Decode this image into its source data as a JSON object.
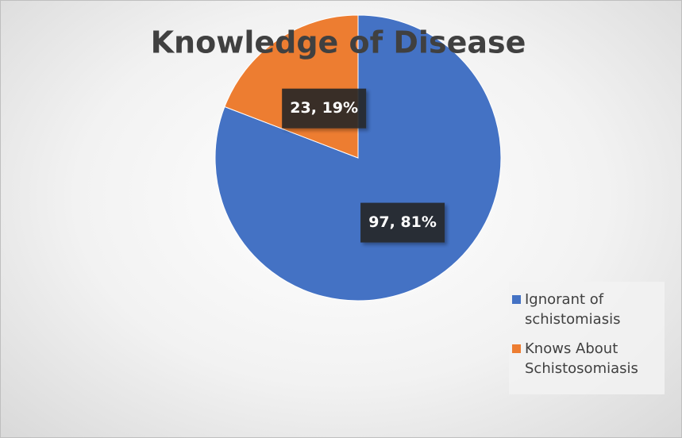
{
  "chart_data": {
    "type": "pie",
    "title": "Knowledge of Disease",
    "categories": [
      "Ignorant of schistomiasis",
      "Knows About Schistosomiasis"
    ],
    "values": [
      97,
      23
    ],
    "value_labels": [
      "97, 81%",
      "23, 19%"
    ],
    "colors": [
      "#4472c4",
      "#ed7d31"
    ],
    "legend": "right"
  }
}
